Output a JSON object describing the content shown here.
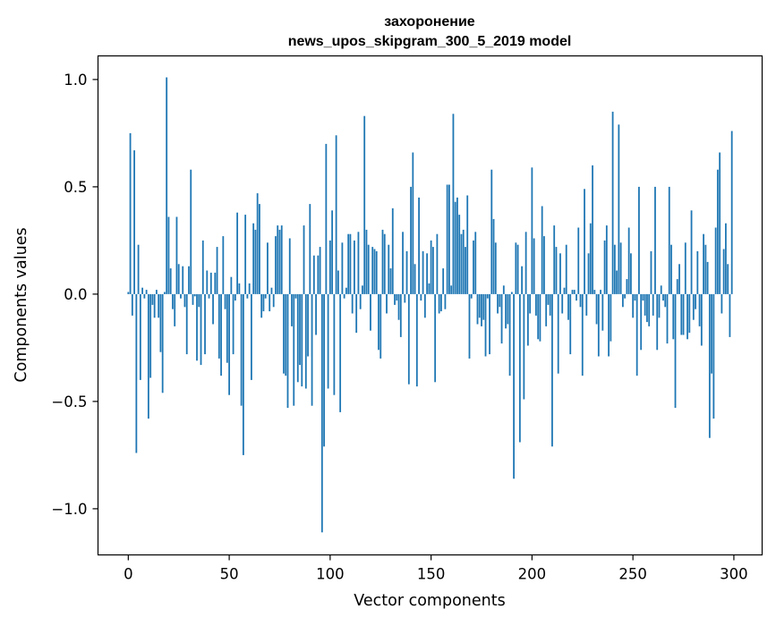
{
  "chart_data": {
    "type": "bar",
    "title": "захоронение",
    "subtitle": "news_upos_skipgram_300_5_2019 model",
    "xlabel": "Vector components",
    "ylabel": "Components values",
    "xlim": [
      -15,
      314
    ],
    "ylim": [
      -1.215,
      1.11
    ],
    "xticks": [
      0,
      50,
      100,
      150,
      200,
      250,
      300
    ],
    "xtick_labels": [
      "0",
      "50",
      "100",
      "150",
      "200",
      "250",
      "300"
    ],
    "yticks": [
      1.0,
      0.5,
      0.0,
      -0.5,
      -1.0
    ],
    "ytick_labels": [
      "1.0",
      "0.5",
      "0.0",
      "−0.5",
      "−1.0"
    ],
    "grid": false,
    "color": "#1f77b4",
    "x_start": 0,
    "values": [
      0.01,
      0.75,
      -0.1,
      0.67,
      -0.74,
      0.23,
      -0.4,
      0.03,
      -0.02,
      0.02,
      -0.58,
      -0.39,
      -0.05,
      -0.11,
      0.02,
      -0.11,
      -0.27,
      -0.46,
      0.01,
      1.01,
      0.36,
      0.12,
      -0.07,
      -0.15,
      0.36,
      0.14,
      -0.02,
      0.13,
      -0.06,
      -0.28,
      0.13,
      0.58,
      -0.05,
      -0.01,
      -0.31,
      -0.06,
      -0.33,
      0.25,
      -0.28,
      0.11,
      -0.02,
      0.1,
      -0.14,
      0.1,
      0.22,
      -0.3,
      -0.38,
      0.27,
      -0.07,
      -0.32,
      -0.47,
      0.08,
      -0.28,
      -0.03,
      0.38,
      0.05,
      -0.52,
      -0.75,
      0.37,
      -0.02,
      0.05,
      -0.4,
      0.33,
      0.3,
      0.47,
      0.42,
      -0.11,
      -0.08,
      -0.02,
      0.24,
      -0.08,
      0.03,
      -0.06,
      0.27,
      0.32,
      0.3,
      0.32,
      -0.37,
      -0.38,
      -0.53,
      0.26,
      -0.15,
      -0.52,
      -0.02,
      -0.41,
      -0.33,
      -0.43,
      0.32,
      -0.44,
      -0.29,
      0.42,
      -0.52,
      0.18,
      -0.19,
      0.18,
      0.22,
      -1.11,
      -0.71,
      0.7,
      -0.44,
      0.25,
      0.39,
      -0.47,
      0.74,
      0.11,
      -0.55,
      0.24,
      -0.02,
      0.03,
      0.28,
      0.28,
      -0.09,
      0.25,
      -0.18,
      0.29,
      -0.07,
      0.04,
      0.83,
      0.3,
      0.23,
      -0.17,
      0.22,
      0.21,
      0.2,
      -0.26,
      -0.3,
      0.3,
      0.28,
      -0.09,
      0.23,
      0.12,
      0.4,
      -0.05,
      -0.03,
      -0.12,
      -0.2,
      0.29,
      -0.04,
      0.2,
      -0.42,
      0.5,
      0.66,
      0.14,
      -0.43,
      0.45,
      -0.03,
      0.2,
      -0.11,
      0.19,
      0.05,
      0.25,
      0.22,
      -0.41,
      0.28,
      -0.09,
      -0.08,
      0.12,
      -0.07,
      0.51,
      0.51,
      0.04,
      0.84,
      0.43,
      0.45,
      0.37,
      0.28,
      0.3,
      0.22,
      0.46,
      -0.3,
      -0.02,
      0.25,
      0.29,
      -0.14,
      -0.11,
      -0.15,
      -0.12,
      -0.29,
      -0.02,
      -0.28,
      0.58,
      0.35,
      0.24,
      -0.09,
      -0.06,
      -0.23,
      0.04,
      -0.16,
      -0.14,
      -0.38,
      0.01,
      -0.86,
      0.24,
      0.23,
      -0.69,
      0.13,
      -0.49,
      0.29,
      -0.24,
      -0.09,
      0.59,
      0.26,
      -0.1,
      -0.21,
      -0.22,
      0.41,
      0.27,
      -0.15,
      -0.05,
      -0.1,
      -0.71,
      0.32,
      0.22,
      -0.37,
      0.19,
      -0.09,
      0.03,
      0.23,
      -0.12,
      -0.28,
      0.02,
      0.02,
      -0.03,
      0.31,
      -0.06,
      -0.38,
      0.49,
      -0.1,
      0.19,
      0.33,
      0.6,
      0.02,
      -0.14,
      -0.29,
      0.02,
      -0.17,
      0.25,
      0.32,
      -0.29,
      -0.22,
      0.85,
      0.23,
      0.11,
      0.79,
      0.24,
      -0.06,
      -0.02,
      0.07,
      0.31,
      0.19,
      -0.11,
      -0.03,
      -0.38,
      0.5,
      -0.26,
      -0.03,
      -0.1,
      -0.13,
      -0.15,
      0.2,
      -0.1,
      0.5,
      -0.26,
      -0.11,
      0.04,
      -0.03,
      -0.06,
      -0.23,
      0.5,
      0.23,
      -0.21,
      -0.53,
      0.07,
      0.14,
      -0.19,
      -0.19,
      0.24,
      -0.21,
      -0.18,
      0.39,
      -0.12,
      -0.07,
      0.2,
      -0.15,
      -0.24,
      0.28,
      0.23,
      0.15,
      -0.67,
      -0.37,
      -0.58,
      0.31,
      0.58,
      0.66,
      -0.09,
      0.21,
      0.33,
      0.14,
      -0.2,
      0.76
    ]
  }
}
